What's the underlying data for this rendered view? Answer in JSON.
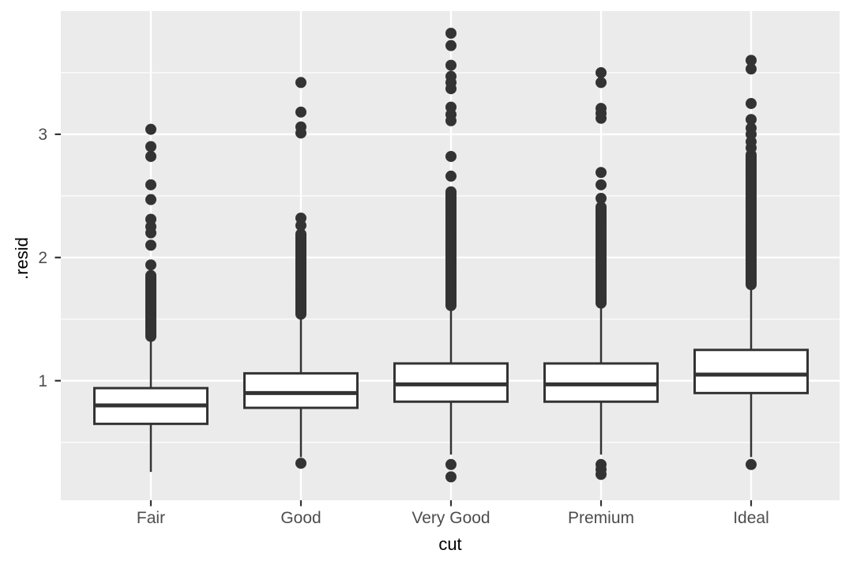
{
  "figure": {
    "kind": "ggplot-boxplot",
    "background": "#ffffff"
  },
  "style": {
    "panel_background": "#ebebeb",
    "grid_color": "#ffffff",
    "box_stroke": "#333333",
    "box_fill": "#ffffff",
    "outlier_color": "#333333",
    "tick_label_color": "#4d4d4d",
    "axis_title_color": "#000000",
    "tick_mark_color": "#333333"
  },
  "chart_data": {
    "type": "boxplot",
    "title": "",
    "xlabel": "cut",
    "ylabel": ".resid",
    "categories": [
      "Fair",
      "Good",
      "Very Good",
      "Premium",
      "Ideal"
    ],
    "ylim": [
      0.03,
      4.0
    ],
    "y_major_ticks": [
      1,
      2,
      3
    ],
    "y_tick_labels": [
      "1",
      "2",
      "3"
    ],
    "y_minor_gridlines": [
      0.5,
      1.5,
      2.5,
      3.5
    ],
    "grid": "major-and-minor",
    "legend": "none",
    "series": [
      {
        "name": "Fair",
        "lower_whisker": 0.26,
        "q1": 0.65,
        "median": 0.8,
        "q3": 0.94,
        "upper_whisker": 1.34,
        "outliers_upper_dense_range": [
          1.36,
          1.86
        ],
        "outliers_upper": [
          1.94,
          2.1,
          2.2,
          2.25,
          2.31,
          2.47,
          2.59,
          2.82,
          2.9,
          3.04
        ],
        "outliers_lower": []
      },
      {
        "name": "Good",
        "lower_whisker": 0.38,
        "q1": 0.78,
        "median": 0.9,
        "q3": 1.06,
        "upper_whisker": 1.52,
        "outliers_upper_dense_range": [
          1.54,
          2.2
        ],
        "outliers_upper": [
          2.26,
          2.32,
          3.01,
          3.06,
          3.18,
          3.42
        ],
        "outliers_lower": [
          0.33
        ]
      },
      {
        "name": "Very Good",
        "lower_whisker": 0.4,
        "q1": 0.83,
        "median": 0.97,
        "q3": 1.14,
        "upper_whisker": 1.59,
        "outliers_upper_dense_range": [
          1.61,
          2.54
        ],
        "outliers_upper": [
          2.66,
          2.82,
          3.11,
          3.16,
          3.22,
          3.37,
          3.42,
          3.47,
          3.56,
          3.72,
          3.82
        ],
        "outliers_lower": [
          0.22,
          0.32
        ]
      },
      {
        "name": "Premium",
        "lower_whisker": 0.4,
        "q1": 0.83,
        "median": 0.97,
        "q3": 1.14,
        "upper_whisker": 1.61,
        "outliers_upper_dense_range": [
          1.63,
          2.42
        ],
        "outliers_upper": [
          2.48,
          2.59,
          2.69,
          3.13,
          3.17,
          3.21,
          3.42,
          3.5
        ],
        "outliers_lower": [
          0.24,
          0.28,
          0.32
        ]
      },
      {
        "name": "Ideal",
        "lower_whisker": 0.38,
        "q1": 0.9,
        "median": 1.05,
        "q3": 1.25,
        "upper_whisker": 1.76,
        "outliers_upper_dense_range": [
          1.78,
          2.84
        ],
        "outliers_upper": [
          2.89,
          2.94,
          3.0,
          3.05,
          3.12,
          3.25,
          3.53,
          3.6
        ],
        "outliers_lower": [
          0.32
        ]
      }
    ]
  }
}
